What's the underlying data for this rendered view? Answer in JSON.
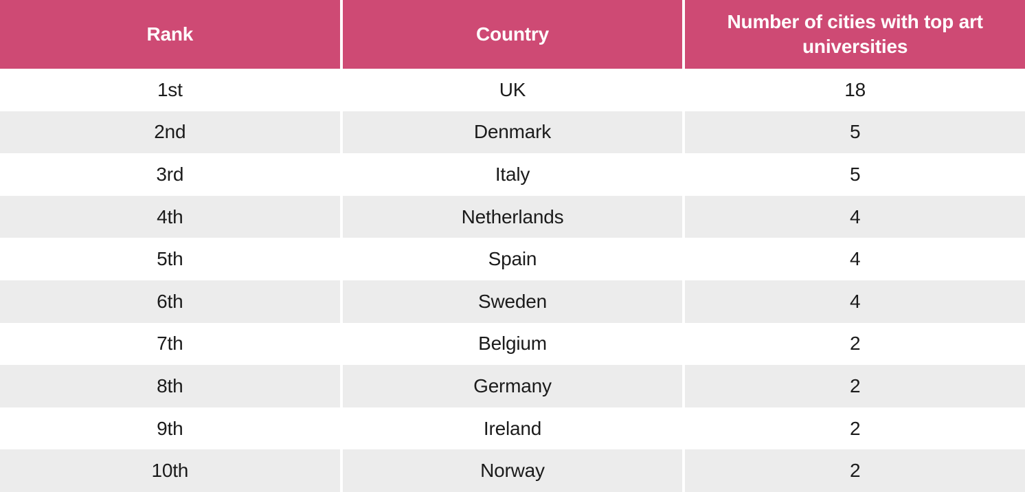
{
  "theme": {
    "accent": "#ce4a74",
    "header-text": "#ffffff",
    "body-text": "#1b1b1b",
    "row-bg": "#ffffff",
    "row-alt": "#ececec"
  },
  "chart_data": {
    "type": "table",
    "columns": [
      "Rank",
      "Country",
      "Number of cities with top art universities"
    ],
    "rows": [
      [
        "1st",
        "UK",
        "18"
      ],
      [
        "2nd",
        "Denmark",
        "5"
      ],
      [
        "3rd",
        "Italy",
        "5"
      ],
      [
        "4th",
        "Netherlands",
        "4"
      ],
      [
        "5th",
        "Spain",
        "4"
      ],
      [
        "6th",
        "Sweden",
        "4"
      ],
      [
        "7th",
        "Belgium",
        "2"
      ],
      [
        "8th",
        "Germany",
        "2"
      ],
      [
        "9th",
        "Ireland",
        "2"
      ],
      [
        "10th",
        "Norway",
        "2"
      ]
    ]
  }
}
